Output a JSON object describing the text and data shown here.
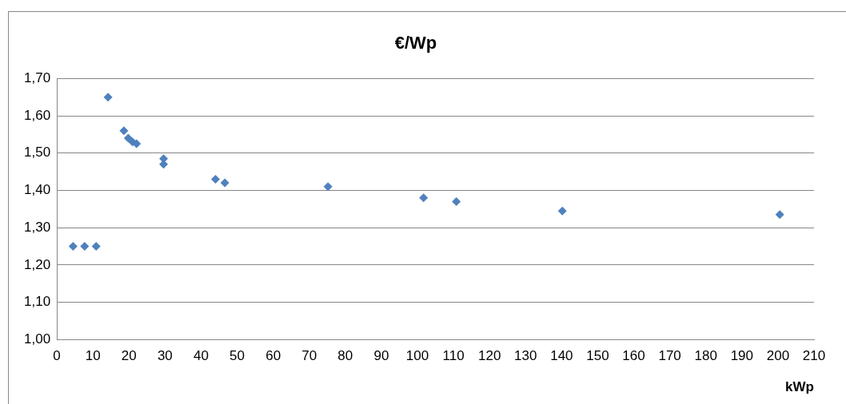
{
  "chart_data": {
    "type": "scatter",
    "title": "€/Wp",
    "xlabel": "kWp",
    "x": [
      4.5,
      7.7,
      10.9,
      14.2,
      18.6,
      19.8,
      21,
      22.1,
      29.6,
      29.6,
      44,
      46.6,
      75.2,
      101.7,
      110.8,
      140.2,
      200.5
    ],
    "series": [
      {
        "color": "#4f81bd",
        "values": [
          1.25,
          1.25,
          1.25,
          1.65,
          1.56,
          1.54,
          1.53,
          1.525,
          1.485,
          1.47,
          1.43,
          1.42,
          1.41,
          1.38,
          1.37,
          1.345,
          1.335
        ]
      }
    ],
    "xlim": [
      0,
      210
    ],
    "xticks": [
      0,
      10,
      20,
      30,
      40,
      50,
      60,
      70,
      80,
      90,
      100,
      110,
      120,
      130,
      140,
      150,
      160,
      170,
      180,
      190,
      200,
      210
    ],
    "ylim": [
      1,
      1.7
    ],
    "yticks": [
      {
        "value": 1,
        "label": "1,00"
      },
      {
        "value": 1.1,
        "label": "1,10"
      },
      {
        "value": 1.2,
        "label": "1,20"
      },
      {
        "value": 1.3,
        "label": "1,30"
      },
      {
        "value": 1.4,
        "label": "1,40"
      },
      {
        "value": 1.5,
        "label": "1,50"
      },
      {
        "value": 1.6,
        "label": "1,60"
      },
      {
        "value": 1.7,
        "label": "1,70"
      }
    ],
    "grid": "y",
    "legend": false,
    "marker": "diamond"
  }
}
